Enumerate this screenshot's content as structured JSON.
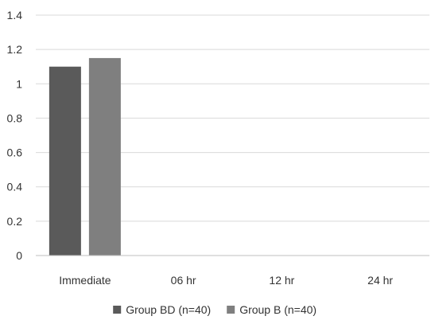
{
  "chart_data": {
    "type": "bar",
    "categories": [
      "Immediate",
      "06 hr",
      "12 hr",
      "24 hr"
    ],
    "series": [
      {
        "name": "Group BD (n=40)",
        "values": [
          1.1,
          0,
          0,
          0
        ],
        "color": "#5a5a5a"
      },
      {
        "name": "Group B (n=40)",
        "values": [
          1.15,
          0,
          0,
          0
        ],
        "color": "#7f7f7f"
      }
    ],
    "ylim": [
      0,
      1.4
    ],
    "yticks": [
      "0",
      "0.2",
      "0.4",
      "0.6",
      "0.8",
      "1",
      "1.2",
      "1.4"
    ],
    "title": "",
    "xlabel": "",
    "ylabel": "",
    "grid": true,
    "legend_position": "bottom",
    "gridline_color": "#d9d9d9",
    "axis_color": "#bfbfbf"
  }
}
